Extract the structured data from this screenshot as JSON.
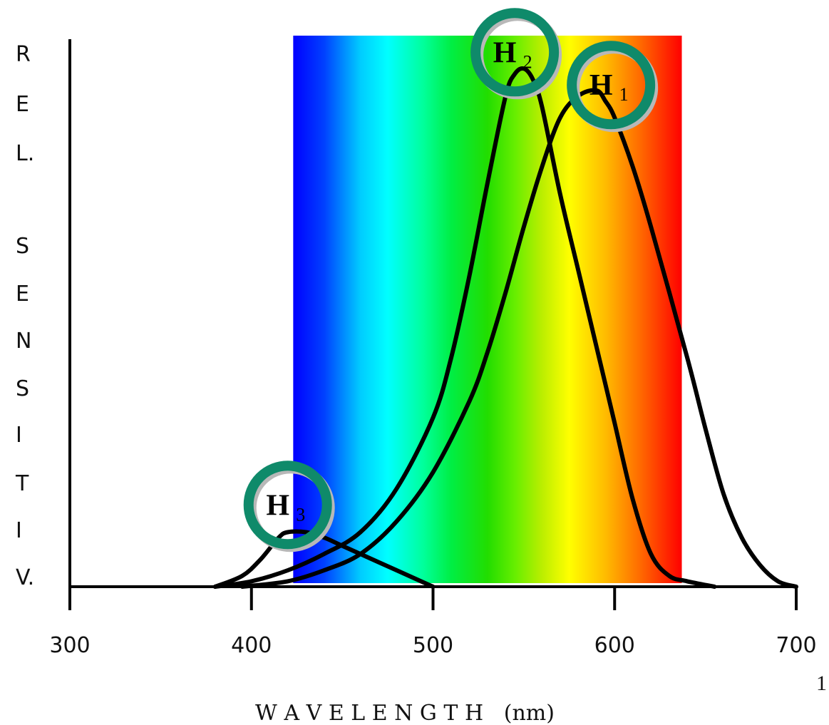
{
  "chart_data": {
    "type": "line",
    "title": "",
    "xlabel": "W A V E L E N G T H   (nm)",
    "ylabel_letters": [
      "R",
      "E",
      "L.",
      "S",
      "E",
      "N",
      "S",
      "I",
      "T",
      "I",
      "V."
    ],
    "xlim": [
      300,
      700
    ],
    "ylim": [
      0,
      1
    ],
    "x_ticks": [
      300,
      400,
      500,
      600,
      700
    ],
    "x_tick_labels": [
      "300",
      "400",
      "500",
      "600",
      "700"
    ],
    "grid": false,
    "legend": "none",
    "spectrum_band": {
      "from": 423,
      "to": 637,
      "stops": [
        {
          "wavelength": 423,
          "color": "#0000ff"
        },
        {
          "wavelength": 440,
          "color": "#0040ff"
        },
        {
          "wavelength": 460,
          "color": "#00ccff"
        },
        {
          "wavelength": 475,
          "color": "#00ffff"
        },
        {
          "wavelength": 495,
          "color": "#00ff99"
        },
        {
          "wavelength": 510,
          "color": "#00ee44"
        },
        {
          "wavelength": 530,
          "color": "#22dd00"
        },
        {
          "wavelength": 545,
          "color": "#66ee00"
        },
        {
          "wavelength": 560,
          "color": "#bbee00"
        },
        {
          "wavelength": 575,
          "color": "#ffff00"
        },
        {
          "wavelength": 595,
          "color": "#ffbb00"
        },
        {
          "wavelength": 615,
          "color": "#ff6600"
        },
        {
          "wavelength": 637,
          "color": "#ff0000"
        }
      ]
    },
    "series": [
      {
        "id": "H1",
        "x": [
          395,
          420,
          440,
          460,
          480,
          500,
          520,
          530,
          540,
          550,
          560,
          570,
          580,
          590,
          595,
          600,
          610,
          620,
          640,
          650,
          660,
          670,
          680,
          690,
          700
        ],
        "y": [
          0.0,
          0.01,
          0.03,
          0.06,
          0.12,
          0.21,
          0.34,
          0.43,
          0.54,
          0.66,
          0.77,
          0.86,
          0.9,
          0.91,
          0.89,
          0.86,
          0.77,
          0.66,
          0.42,
          0.29,
          0.17,
          0.09,
          0.04,
          0.01,
          0.0
        ]
      },
      {
        "id": "H2",
        "x": [
          380,
          400,
          420,
          440,
          460,
          480,
          500,
          510,
          520,
          530,
          540,
          545,
          550,
          555,
          560,
          570,
          580,
          590,
          600,
          610,
          620,
          630,
          640,
          655
        ],
        "y": [
          0.0,
          0.01,
          0.03,
          0.06,
          0.1,
          0.18,
          0.31,
          0.42,
          0.57,
          0.74,
          0.9,
          0.94,
          0.95,
          0.93,
          0.88,
          0.72,
          0.58,
          0.44,
          0.3,
          0.16,
          0.06,
          0.02,
          0.01,
          0.0
        ]
      },
      {
        "id": "H3",
        "x": [
          380,
          395,
          405,
          415,
          420,
          430,
          440,
          450,
          460,
          470,
          480,
          490,
          500
        ],
        "y": [
          0.0,
          0.02,
          0.05,
          0.09,
          0.1,
          0.1,
          0.09,
          0.075,
          0.06,
          0.045,
          0.03,
          0.015,
          0.0
        ]
      }
    ],
    "markers": [
      {
        "id": "H2",
        "label": "H",
        "sub": "2",
        "x": 545,
        "y": 0.98
      },
      {
        "id": "H1",
        "label": "H",
        "sub": "1",
        "x": 598,
        "y": 0.92
      },
      {
        "id": "H3",
        "label": "H",
        "sub": "3",
        "x": 420,
        "y": 0.15
      }
    ],
    "marker_ring_color": "#0f8a6a",
    "curve_color": "#000000"
  },
  "page": {
    "number": "1"
  }
}
